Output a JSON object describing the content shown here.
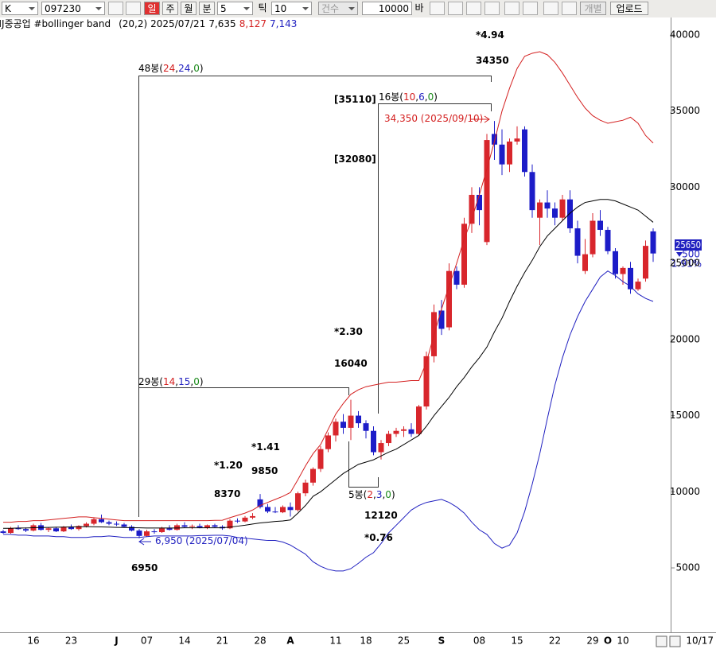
{
  "toolbar": {
    "market": "K",
    "code": "097230",
    "periods": [
      "일",
      "주",
      "월",
      "분"
    ],
    "minute": "5",
    "tick_label": "틱",
    "tick": "10",
    "count_label": "건수",
    "count": "10000",
    "bar_label": "바",
    "individual": "개별",
    "upload": "업로드"
  },
  "chart_data": {
    "type": "candlestick",
    "title": "HJ중공업 #bollinger band",
    "params": "(20,2)",
    "date": "2025/07/21",
    "header_values": [
      {
        "text": "7,635",
        "color": "#000000"
      },
      {
        "text": "8,127",
        "color": "#d42020"
      },
      {
        "text": "7,143",
        "color": "#2020c0"
      }
    ],
    "categories": [
      null,
      null,
      null,
      null,
      "16",
      null,
      null,
      null,
      null,
      "23",
      null,
      null,
      null,
      null,
      null,
      "J",
      null,
      null,
      null,
      "07",
      null,
      null,
      null,
      null,
      "14",
      null,
      null,
      null,
      null,
      "21",
      null,
      null,
      null,
      null,
      "28",
      null,
      null,
      null,
      "A",
      null,
      null,
      null,
      null,
      null,
      "11",
      null,
      null,
      null,
      "18",
      null,
      null,
      null,
      null,
      "25",
      null,
      null,
      null,
      null,
      "S",
      null,
      null,
      null,
      null,
      "08",
      null,
      null,
      null,
      null,
      "15",
      null,
      null,
      null,
      null,
      "22",
      null,
      null,
      null,
      null,
      "29",
      null,
      "O",
      null,
      "10",
      null,
      null,
      null,
      null
    ],
    "candles": {
      "up_color": "#d8262c",
      "down_color": "#1c1cc8",
      "open": [
        7400,
        7300,
        7600,
        7550,
        7450,
        7800,
        7500,
        7600,
        7400,
        7700,
        7550,
        7750,
        7900,
        8200,
        8000,
        7900,
        7850,
        7700,
        7450,
        7100,
        7400,
        7350,
        7600,
        7500,
        7800,
        7700,
        7750,
        7650,
        7800,
        7700,
        7600,
        8100,
        8050,
        8300,
        9500,
        9000,
        8700,
        8650,
        9000,
        8800,
        9900,
        10600,
        11500,
        12800,
        13700,
        14600,
        14200,
        15000,
        14500,
        14000,
        12600,
        13200,
        13800,
        14000,
        14100,
        13800,
        15600,
        18900,
        21900,
        20800,
        24500,
        23600,
        27600,
        29500,
        26400,
        33500,
        32800,
        31500,
        33000,
        33800,
        31000,
        28000,
        29000,
        28600,
        28000,
        29200,
        27300,
        24500,
        25600,
        27800,
        27200,
        25800,
        24300,
        24700,
        23300,
        24000,
        27100
      ],
      "high": [
        7500,
        7700,
        7800,
        7650,
        7900,
        7950,
        7650,
        7700,
        7750,
        7850,
        7800,
        8000,
        8300,
        8500,
        8100,
        8050,
        7950,
        7800,
        7550,
        7500,
        7550,
        7700,
        7800,
        7900,
        8000,
        7850,
        7900,
        7850,
        7900,
        7800,
        8200,
        8250,
        8400,
        8600,
        9850,
        9200,
        9000,
        9100,
        9300,
        10000,
        10800,
        11600,
        13000,
        13900,
        14800,
        15100,
        16040,
        15300,
        14700,
        14300,
        13400,
        14000,
        14200,
        14300,
        14500,
        15700,
        19200,
        22300,
        22600,
        25000,
        24800,
        28000,
        30000,
        30000,
        33500,
        34350,
        33800,
        33200,
        34000,
        34000,
        31500,
        29200,
        29800,
        29000,
        29500,
        29800,
        27800,
        26600,
        28300,
        28500,
        27400,
        26000,
        24800,
        25100,
        24000,
        26500,
        27300
      ],
      "low": [
        7250,
        7250,
        7500,
        7350,
        7400,
        7450,
        7350,
        7350,
        7350,
        7500,
        7450,
        7650,
        7800,
        7950,
        7800,
        7750,
        7650,
        7400,
        6950,
        7050,
        7250,
        7300,
        7450,
        7450,
        7650,
        7550,
        7600,
        7550,
        7650,
        7500,
        7550,
        7950,
        8000,
        8200,
        8900,
        8600,
        8600,
        8600,
        8370,
        8700,
        9700,
        10400,
        11300,
        12600,
        13300,
        13800,
        13400,
        14200,
        13500,
        12400,
        12120,
        13000,
        13600,
        13600,
        13600,
        13700,
        15400,
        18500,
        20300,
        20600,
        23300,
        23400,
        27000,
        27500,
        26200,
        31800,
        30800,
        31000,
        32800,
        30700,
        28000,
        26200,
        28000,
        27500,
        27800,
        27000,
        25000,
        24300,
        25400,
        26800,
        25600,
        24000,
        23600,
        23000,
        23200,
        23800,
        25100
      ],
      "close": [
        7300,
        7600,
        7550,
        7450,
        7800,
        7500,
        7600,
        7400,
        7700,
        7550,
        7750,
        7900,
        8200,
        8000,
        7900,
        7850,
        7700,
        7450,
        7100,
        7400,
        7350,
        7600,
        7500,
        7800,
        7700,
        7750,
        7650,
        7800,
        7700,
        7600,
        8100,
        8050,
        8300,
        8400,
        9000,
        8700,
        8650,
        9000,
        8800,
        9900,
        10600,
        11500,
        12800,
        13700,
        14600,
        14200,
        15000,
        14500,
        14000,
        12600,
        13200,
        13800,
        14000,
        14100,
        13800,
        15600,
        18900,
        21800,
        20700,
        24500,
        23600,
        27600,
        29500,
        28500,
        33100,
        32800,
        31500,
        33000,
        33200,
        31000,
        28500,
        29000,
        28600,
        28000,
        29200,
        27300,
        25500,
        25600,
        27800,
        27200,
        25800,
        24300,
        24700,
        23300,
        23800,
        26150,
        25650
      ]
    },
    "bands": [
      {
        "color": "#d42020",
        "values": [
          8000,
          8000,
          8050,
          8050,
          8100,
          8100,
          8150,
          8200,
          8250,
          8300,
          8350,
          8350,
          8300,
          8250,
          8200,
          8150,
          8100,
          8100,
          8100,
          8100,
          8100,
          8100,
          8100,
          8100,
          8100,
          8100,
          8100,
          8100,
          8120,
          8127,
          8300,
          8450,
          8600,
          8800,
          9100,
          9300,
          9500,
          9700,
          9950,
          10800,
          11700,
          12500,
          13100,
          14100,
          15100,
          15800,
          16400,
          16700,
          16900,
          17000,
          17100,
          17200,
          17200,
          17250,
          17300,
          17300,
          18500,
          20300,
          22000,
          23500,
          25000,
          26600,
          27900,
          29500,
          31200,
          33000,
          35000,
          36500,
          37800,
          38600,
          38800,
          38900,
          38700,
          38200,
          37500,
          36700,
          35900,
          35200,
          34700,
          34400,
          34200,
          34300,
          34400,
          34600,
          34200,
          33400,
          32900
        ]
      },
      {
        "color": "#000000",
        "values": [
          7600,
          7600,
          7620,
          7620,
          7640,
          7650,
          7660,
          7670,
          7680,
          7690,
          7700,
          7710,
          7700,
          7690,
          7680,
          7660,
          7650,
          7640,
          7630,
          7620,
          7620,
          7620,
          7620,
          7620,
          7630,
          7630,
          7630,
          7630,
          7635,
          7635,
          7680,
          7740,
          7800,
          7880,
          7950,
          8000,
          8050,
          8080,
          8150,
          8600,
          9100,
          9700,
          10000,
          10400,
          10800,
          11200,
          11500,
          11800,
          11950,
          12100,
          12350,
          12600,
          12800,
          13100,
          13400,
          13700,
          14300,
          15000,
          15600,
          16200,
          16900,
          17500,
          18200,
          18800,
          19500,
          20500,
          21400,
          22500,
          23500,
          24400,
          25200,
          26100,
          26800,
          27300,
          27800,
          28300,
          28700,
          29000,
          29100,
          29200,
          29200,
          29100,
          28900,
          28700,
          28500,
          28100,
          27700
        ]
      },
      {
        "color": "#2020c0",
        "values": [
          7200,
          7200,
          7150,
          7150,
          7100,
          7100,
          7100,
          7050,
          7050,
          7000,
          7000,
          7000,
          7050,
          7050,
          7100,
          7050,
          7000,
          7000,
          7000,
          7050,
          7100,
          7100,
          7100,
          7100,
          7100,
          7100,
          7120,
          7130,
          7140,
          7143,
          7100,
          7000,
          6950,
          6900,
          6850,
          6800,
          6800,
          6700,
          6500,
          6200,
          5900,
          5400,
          5100,
          4900,
          4800,
          4800,
          4950,
          5300,
          5700,
          6000,
          6600,
          7300,
          7800,
          8300,
          8800,
          9100,
          9300,
          9400,
          9500,
          9300,
          9000,
          8600,
          8000,
          7500,
          7200,
          6600,
          6300,
          6500,
          7300,
          8700,
          10500,
          12500,
          14800,
          17000,
          18800,
          20300,
          21500,
          22500,
          23300,
          24100,
          24500,
          24200,
          23800,
          23500,
          23000,
          22700,
          22500
        ]
      }
    ],
    "ylim": [
      770,
      40730
    ],
    "yticks": [
      5000,
      10000,
      15000,
      20000,
      25000,
      30000,
      35000,
      40000
    ],
    "grid": false,
    "annotations": [
      {
        "parts": [
          {
            "text": "48봉("
          },
          {
            "text": "24",
            "color": "#d42020"
          },
          {
            "text": ","
          },
          {
            "text": "24",
            "color": "#2020c0"
          },
          {
            "text": ","
          },
          {
            "text": "0",
            "color": "#1a8a1a"
          },
          {
            "text": ")"
          }
        ]
      },
      {
        "bold": true,
        "parts": [
          {
            "text": "*4.94"
          }
        ]
      },
      {
        "bold": true,
        "parts": [
          {
            "text": "34350"
          }
        ]
      },
      {
        "bold": true,
        "parts": [
          {
            "text": "[35110]"
          }
        ]
      },
      {
        "parts": [
          {
            "text": "16봉("
          },
          {
            "text": "10",
            "color": "#d42020"
          },
          {
            "text": ","
          },
          {
            "text": "6",
            "color": "#2020c0"
          },
          {
            "text": ","
          },
          {
            "text": "0",
            "color": "#1a8a1a"
          },
          {
            "text": ")"
          }
        ]
      },
      {
        "parts": [
          {
            "text": "34,350 (2025/09/10)",
            "color": "#d42020"
          }
        ]
      },
      {
        "bold": true,
        "parts": [
          {
            "text": "[32080]"
          }
        ]
      },
      {
        "bold": true,
        "parts": [
          {
            "text": "*2.30"
          }
        ]
      },
      {
        "bold": true,
        "parts": [
          {
            "text": "16040"
          }
        ]
      },
      {
        "parts": [
          {
            "text": "29봉("
          },
          {
            "text": "14",
            "color": "#d42020"
          },
          {
            "text": ","
          },
          {
            "text": "15",
            "color": "#2020c0"
          },
          {
            "text": ","
          },
          {
            "text": "0",
            "color": "#1a8a1a"
          },
          {
            "text": ")"
          }
        ]
      },
      {
        "bold": true,
        "parts": [
          {
            "text": "*1.41"
          }
        ]
      },
      {
        "bold": true,
        "parts": [
          {
            "text": "9850"
          }
        ]
      },
      {
        "bold": true,
        "parts": [
          {
            "text": "*1.20"
          }
        ]
      },
      {
        "bold": true,
        "parts": [
          {
            "text": "8370"
          }
        ]
      },
      {
        "parts": [
          {
            "text": "5봉("
          },
          {
            "text": "2",
            "color": "#d42020"
          },
          {
            "text": ","
          },
          {
            "text": "3",
            "color": "#2020c0"
          },
          {
            "text": ","
          },
          {
            "text": "0",
            "color": "#1a8a1a"
          },
          {
            "text": ")"
          }
        ]
      },
      {
        "bold": true,
        "parts": [
          {
            "text": "12120"
          }
        ]
      },
      {
        "bold": true,
        "parts": [
          {
            "text": "*0.76"
          }
        ]
      },
      {
        "parts": [
          {
            "text": "6,950 (2025/07/04)",
            "color": "#2020c0"
          }
        ]
      },
      {
        "bold": true,
        "parts": [
          {
            "text": "6950"
          }
        ]
      }
    ],
    "last_price": {
      "text": "25650",
      "change": "500",
      "change_pct": "1.91%"
    },
    "end_date": "10/17"
  }
}
